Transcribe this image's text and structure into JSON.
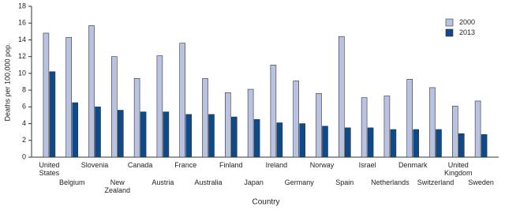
{
  "chart_data": {
    "type": "bar",
    "x_label": "Country",
    "y_label": "Deaths per 100,000 pop.",
    "categories": [
      "United States",
      "Belgium",
      "Slovenia",
      "New Zealand",
      "Canada",
      "Austria",
      "France",
      "Australia",
      "Finland",
      "Japan",
      "Ireland",
      "Germany",
      "Norway",
      "Spain",
      "Israel",
      "Netherlands",
      "Denmark",
      "Switzerland",
      "United Kingdom",
      "Sweden"
    ],
    "series": [
      {
        "name": "2000",
        "color": "#b9c3e1",
        "values": [
          14.8,
          14.3,
          15.7,
          12.0,
          9.4,
          12.1,
          13.6,
          9.4,
          7.7,
          8.1,
          11.0,
          9.1,
          7.6,
          14.4,
          7.1,
          7.3,
          9.3,
          8.3,
          6.1,
          6.7
        ]
      },
      {
        "name": "2013",
        "color": "#0d4a8c",
        "values": [
          10.2,
          6.5,
          6.0,
          5.6,
          5.4,
          5.4,
          5.1,
          5.1,
          4.8,
          4.5,
          4.1,
          4.0,
          3.7,
          3.5,
          3.5,
          3.3,
          3.3,
          3.3,
          2.8,
          2.7
        ]
      }
    ],
    "ylim": [
      0,
      18
    ],
    "yticks": [
      0,
      2,
      4,
      6,
      8,
      10,
      12,
      14,
      16,
      18
    ],
    "grid": false,
    "legend": "upper right"
  }
}
